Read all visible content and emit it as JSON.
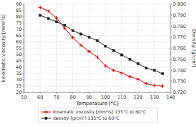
{
  "chart_data": {
    "type": "line",
    "xlabel": "Temperature [°C]",
    "ylabel": "kinematic viscosity [mm²/s]",
    "y2label": "Density [g/cm³]",
    "x": [
      60,
      65,
      70,
      75,
      80,
      85,
      90,
      95,
      100,
      105,
      110,
      115,
      120,
      125,
      130,
      135
    ],
    "series": [
      {
        "name": "kinematic viscosity [mm²/s] 135°C to 60°C",
        "color": "#cc0000",
        "marker": "plus",
        "values": [
          87.5,
          84.5,
          79.0,
          71.0,
          63.5,
          57.5,
          52.5,
          48.0,
          41.0,
          37.5,
          35.5,
          32.5,
          30.5,
          27.0,
          25.5,
          25.0
        ]
      },
      {
        "name": "density [g/cm³] 135°C to 60°C",
        "color": "#222222",
        "marker": "square",
        "axis": "y2",
        "values": [
          0.79,
          0.787,
          0.784,
          0.781,
          0.776,
          0.773,
          0.77,
          0.767,
          0.762,
          0.758,
          0.754,
          0.75,
          0.746,
          0.742,
          0.74,
          0.737
        ]
      }
    ],
    "xlim": [
      50,
      140
    ],
    "ylim": [
      20,
      90
    ],
    "y2lim": [
      0.72,
      0.8
    ],
    "xticks": [
      50,
      60,
      70,
      80,
      90,
      100,
      110,
      120,
      130,
      140
    ],
    "yticks": [
      20,
      25,
      30,
      35,
      40,
      45,
      50,
      55,
      60,
      65,
      70,
      75,
      80,
      85,
      90
    ],
    "y2ticks": [
      {
        "value": 0.72,
        "label": "0.720"
      },
      {
        "value": 0.73,
        "label": "0.730"
      },
      {
        "value": 0.74,
        "label": "0.740"
      },
      {
        "value": 0.75,
        "label": "0.750"
      },
      {
        "value": 0.76,
        "label": "0.760"
      },
      {
        "value": 0.77,
        "label": "0.770"
      },
      {
        "value": 0.78,
        "label": "0.780"
      },
      {
        "value": 0.79,
        "label": "0.790"
      },
      {
        "value": 0.8,
        "label": "0.800"
      }
    ],
    "grid": true,
    "legend": "bottom"
  }
}
